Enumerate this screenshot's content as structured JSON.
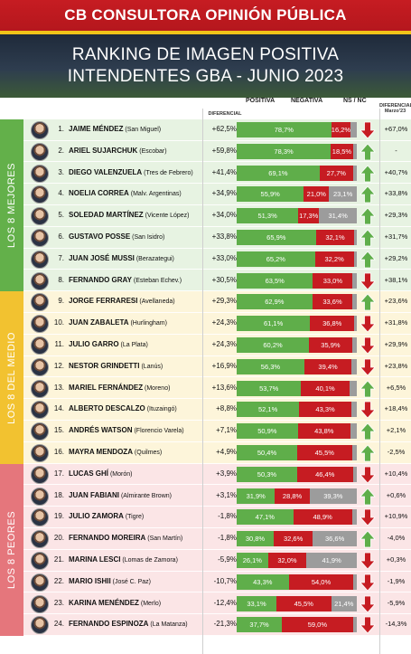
{
  "header": {
    "brand": "CB CONSULTORA OPINIÓN PÚBLICA",
    "title_line1": "RANKING DE IMAGEN POSITIVA",
    "title_line2": "INTENDENTES GBA - JUNIO 2023"
  },
  "colors": {
    "positiva": "#5fae4a",
    "negativa": "#c61c22",
    "ns_nc": "#9c9c9c",
    "up_arrow": "#5fae4a",
    "down_arrow": "#c61c22"
  },
  "columns": {
    "diferencial": "DIFERENCIAL",
    "diferencial_prev": "DIFERENCIAL Marzo'23"
  },
  "chart_data": {
    "type": "bar",
    "series": [
      {
        "name": "POSITIVA",
        "color": "#5fae4a"
      },
      {
        "name": "NEGATIVA",
        "color": "#c61c22"
      },
      {
        "name": "NS / NC",
        "color": "#9c9c9c"
      }
    ],
    "sections": [
      {
        "label": "LOS 8 MEJORES",
        "color": "#63b04a",
        "bg": "#e7f3e2",
        "start": 0,
        "end": 7
      },
      {
        "label": "LOS 8 DEL MEDIO",
        "color": "#f2c230",
        "bg": "#fdf5da",
        "start": 8,
        "end": 15
      },
      {
        "label": "LOS 8 PEORES",
        "color": "#e5767c",
        "bg": "#fbe5e6",
        "start": 16,
        "end": 23
      }
    ],
    "rows": [
      {
        "rank": "1.",
        "name": "JAIME MÉNDEZ",
        "place": "(San Miguel)",
        "diff": "+62,5%",
        "pos": 78.7,
        "neg": 16.2,
        "ns": 5.1,
        "pos_label": "78,7%",
        "neg_label": "16,2%",
        "ns_label": "",
        "trend": "down",
        "prev": "+67,0%"
      },
      {
        "rank": "2.",
        "name": "ARIEL SUJARCHUK",
        "place": "(Escobar)",
        "diff": "+59,8%",
        "pos": 78.3,
        "neg": 18.5,
        "ns": 3.2,
        "pos_label": "78,3%",
        "neg_label": "18,5%",
        "ns_label": "",
        "trend": "up",
        "prev": "-"
      },
      {
        "rank": "3.",
        "name": "DIEGO VALENZUELA",
        "place": "(Tres de Febrero)",
        "diff": "+41,4%",
        "pos": 69.1,
        "neg": 27.7,
        "ns": 3.2,
        "pos_label": "69,1%",
        "neg_label": "27,7%",
        "ns_label": "",
        "trend": "up",
        "prev": "+40,7%"
      },
      {
        "rank": "4.",
        "name": "NOELIA CORREA",
        "place": "(Malv. Argentinas)",
        "diff": "+34,9%",
        "pos": 55.9,
        "neg": 21.0,
        "ns": 23.1,
        "pos_label": "55,9%",
        "neg_label": "21,0%",
        "ns_label": "23,1%",
        "trend": "up",
        "prev": "+33,8%"
      },
      {
        "rank": "5.",
        "name": "SOLEDAD MARTÍNEZ",
        "place": "(Vicente López)",
        "diff": "+34,0%",
        "pos": 51.3,
        "neg": 17.3,
        "ns": 31.4,
        "pos_label": "51,3%",
        "neg_label": "17,3%",
        "ns_label": "31,4%",
        "trend": "up",
        "prev": "+29,3%"
      },
      {
        "rank": "6.",
        "name": "GUSTAVO POSSE",
        "place": "(San Isidro)",
        "diff": "+33,8%",
        "pos": 65.9,
        "neg": 32.1,
        "ns": 2.0,
        "pos_label": "65,9%",
        "neg_label": "32,1%",
        "ns_label": "",
        "trend": "up",
        "prev": "+31,7%"
      },
      {
        "rank": "7.",
        "name": "JUAN JOSÉ MUSSI",
        "place": "(Berazategui)",
        "diff": "+33,0%",
        "pos": 65.2,
        "neg": 32.2,
        "ns": 2.6,
        "pos_label": "65,2%",
        "neg_label": "32,2%",
        "ns_label": "",
        "trend": "up",
        "prev": "+29,2%"
      },
      {
        "rank": "8.",
        "name": "FERNANDO GRAY",
        "place": "(Esteban Echev.)",
        "diff": "+30,5%",
        "pos": 63.5,
        "neg": 33.0,
        "ns": 3.5,
        "pos_label": "63,5%",
        "neg_label": "33,0%",
        "ns_label": "",
        "trend": "down",
        "prev": "+38,1%"
      },
      {
        "rank": "9.",
        "name": "JORGE FERRARESI",
        "place": "(Avellaneda)",
        "diff": "+29,3%",
        "pos": 62.9,
        "neg": 33.6,
        "ns": 3.5,
        "pos_label": "62,9%",
        "neg_label": "33,6%",
        "ns_label": "",
        "trend": "up",
        "prev": "+23,6%"
      },
      {
        "rank": "10.",
        "name": "JUAN ZABALETA",
        "place": "(Hurlingham)",
        "diff": "+24,3%",
        "pos": 61.1,
        "neg": 36.8,
        "ns": 2.1,
        "pos_label": "61,1%",
        "neg_label": "36,8%",
        "ns_label": "",
        "trend": "down",
        "prev": "+31,8%"
      },
      {
        "rank": "11.",
        "name": "JULIO GARRO",
        "place": "(La Plata)",
        "diff": "+24,3%",
        "pos": 60.2,
        "neg": 35.9,
        "ns": 3.9,
        "pos_label": "60,2%",
        "neg_label": "35,9%",
        "ns_label": "",
        "trend": "down",
        "prev": "+29,9%"
      },
      {
        "rank": "12.",
        "name": "NESTOR GRINDETTI",
        "place": "(Lanús)",
        "diff": "+16,9%",
        "pos": 56.3,
        "neg": 39.4,
        "ns": 4.3,
        "pos_label": "56,3%",
        "neg_label": "39,4%",
        "ns_label": "",
        "trend": "down",
        "prev": "+23,8%"
      },
      {
        "rank": "13.",
        "name": "MARIEL FERNÁNDEZ",
        "place": "(Moreno)",
        "diff": "+13,6%",
        "pos": 53.7,
        "neg": 40.1,
        "ns": 6.2,
        "pos_label": "53,7%",
        "neg_label": "40,1%",
        "ns_label": "",
        "trend": "up",
        "prev": "+6,5%"
      },
      {
        "rank": "14.",
        "name": "ALBERTO DESCALZO",
        "place": "(Ituzaingó)",
        "diff": "+8,8%",
        "pos": 52.1,
        "neg": 43.3,
        "ns": 4.6,
        "pos_label": "52,1%",
        "neg_label": "43,3%",
        "ns_label": "",
        "trend": "down",
        "prev": "+18,4%"
      },
      {
        "rank": "15.",
        "name": "ANDRÉS WATSON",
        "place": "(Florencio Varela)",
        "diff": "+7,1%",
        "pos": 50.9,
        "neg": 43.8,
        "ns": 5.3,
        "pos_label": "50,9%",
        "neg_label": "43,8%",
        "ns_label": "",
        "trend": "up",
        "prev": "+2,1%"
      },
      {
        "rank": "16.",
        "name": "MAYRA MENDOZA",
        "place": "(Quilmes)",
        "diff": "+4,9%",
        "pos": 50.4,
        "neg": 45.5,
        "ns": 4.1,
        "pos_label": "50,4%",
        "neg_label": "45,5%",
        "ns_label": "",
        "trend": "up",
        "prev": "-2,5%"
      },
      {
        "rank": "17.",
        "name": "LUCAS GHÍ",
        "place": "(Morón)",
        "diff": "+3,9%",
        "pos": 50.3,
        "neg": 46.4,
        "ns": 3.3,
        "pos_label": "50,3%",
        "neg_label": "46,4%",
        "ns_label": "",
        "trend": "down",
        "prev": "+10,4%"
      },
      {
        "rank": "18.",
        "name": "JUAN FABIANI",
        "place": "(Almirante Brown)",
        "diff": "+3,1%",
        "pos": 31.9,
        "neg": 28.8,
        "ns": 39.3,
        "pos_label": "31,9%",
        "neg_label": "28,8%",
        "ns_label": "39,3%",
        "trend": "up",
        "prev": "+0,6%"
      },
      {
        "rank": "19.",
        "name": "JULIO ZAMORA",
        "place": "(Tigre)",
        "diff": "-1,8%",
        "pos": 47.1,
        "neg": 48.9,
        "ns": 4.0,
        "pos_label": "47,1%",
        "neg_label": "48,9%",
        "ns_label": "",
        "trend": "down",
        "prev": "+10,9%"
      },
      {
        "rank": "20.",
        "name": "FERNANDO MOREIRA",
        "place": "(San Martín)",
        "diff": "-1,8%",
        "pos": 30.8,
        "neg": 32.6,
        "ns": 36.6,
        "pos_label": "30,8%",
        "neg_label": "32,6%",
        "ns_label": "36,6%",
        "trend": "up",
        "prev": "-4,0%"
      },
      {
        "rank": "21.",
        "name": "MARINA LESCI",
        "place": "(Lomas de Zamora)",
        "diff": "-5,9%",
        "pos": 26.1,
        "neg": 32.0,
        "ns": 41.9,
        "pos_label": "26,1%",
        "neg_label": "32,0%",
        "ns_label": "41,9%",
        "trend": "down",
        "prev": "+0,3%"
      },
      {
        "rank": "22.",
        "name": "MARIO ISHII",
        "place": "(José C. Paz)",
        "diff": "-10,7%",
        "pos": 43.3,
        "neg": 54.0,
        "ns": 2.7,
        "pos_label": "43,3%",
        "neg_label": "54,0%",
        "ns_label": "",
        "trend": "down",
        "prev": "-1,9%"
      },
      {
        "rank": "23.",
        "name": "KARINA MENÉNDEZ",
        "place": "(Merlo)",
        "diff": "-12,4%",
        "pos": 33.1,
        "neg": 45.5,
        "ns": 21.4,
        "pos_label": "33,1%",
        "neg_label": "45,5%",
        "ns_label": "21,4%",
        "trend": "down",
        "prev": "-5,9%"
      },
      {
        "rank": "24.",
        "name": "FERNANDO ESPINOZA",
        "place": "(La Matanza)",
        "diff": "-21,3%",
        "pos": 37.7,
        "neg": 59.0,
        "ns": 3.3,
        "pos_label": "37,7%",
        "neg_label": "59,0%",
        "ns_label": "",
        "trend": "down",
        "prev": "-14,3%"
      }
    ]
  }
}
